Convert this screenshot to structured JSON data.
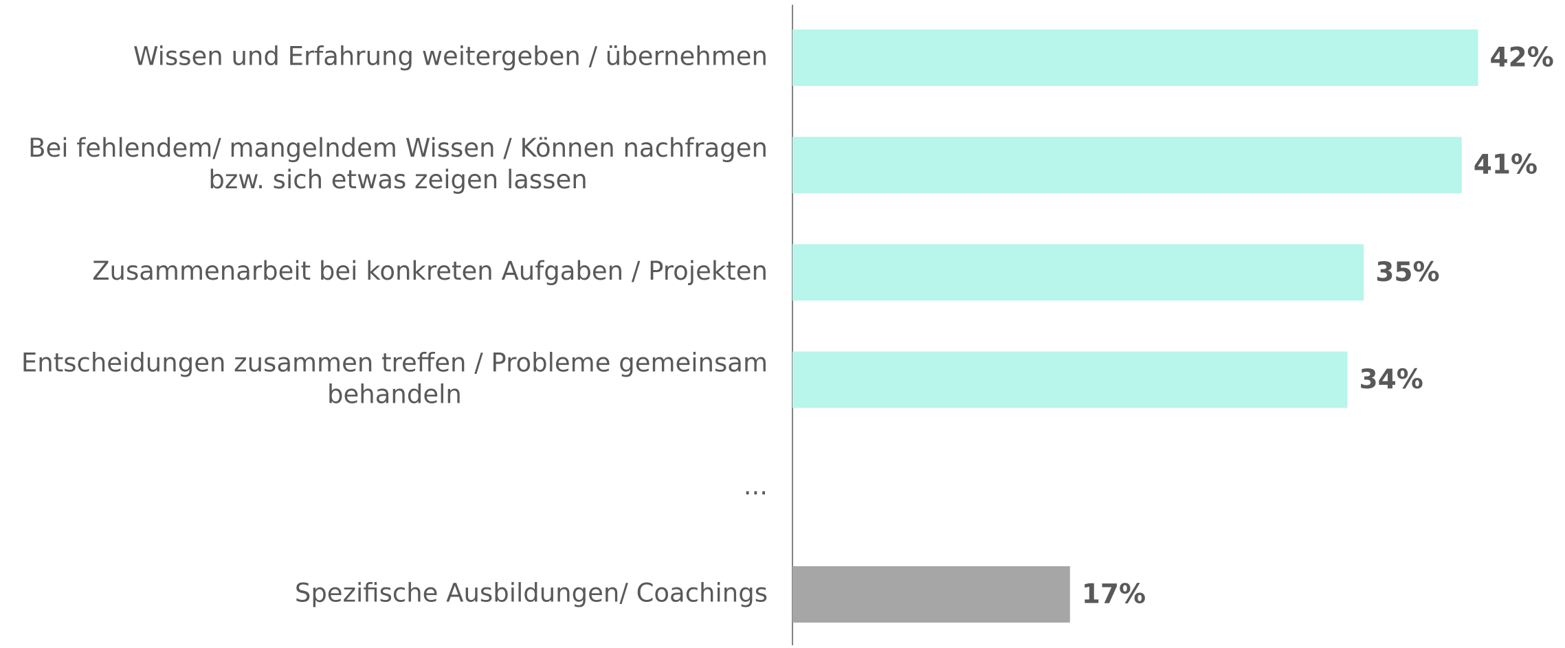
{
  "chart_data": {
    "type": "bar",
    "orientation": "horizontal",
    "categories": [
      "Wissen und Erfahrung weitergeben / übernehmen",
      "Bei fehlendem/ mangelndem Wissen / Können nachfragen\nbzw. sich etwas zeigen lassen",
      "Zusammenarbeit bei konkreten Aufgaben / Projekten",
      "Entscheidungen zusammen treffen / Probleme gemeinsam\nbehandeln",
      "...",
      "Spezifische Ausbildungen/  Coachings"
    ],
    "values": [
      42,
      41,
      35,
      34,
      null,
      17
    ],
    "value_labels": [
      "42%",
      "41%",
      "35%",
      "34%",
      null,
      "17%"
    ],
    "colors": [
      "#b8f5ea",
      "#b8f5ea",
      "#b8f5ea",
      "#b8f5ea",
      null,
      "#a6a6a6"
    ]
  }
}
